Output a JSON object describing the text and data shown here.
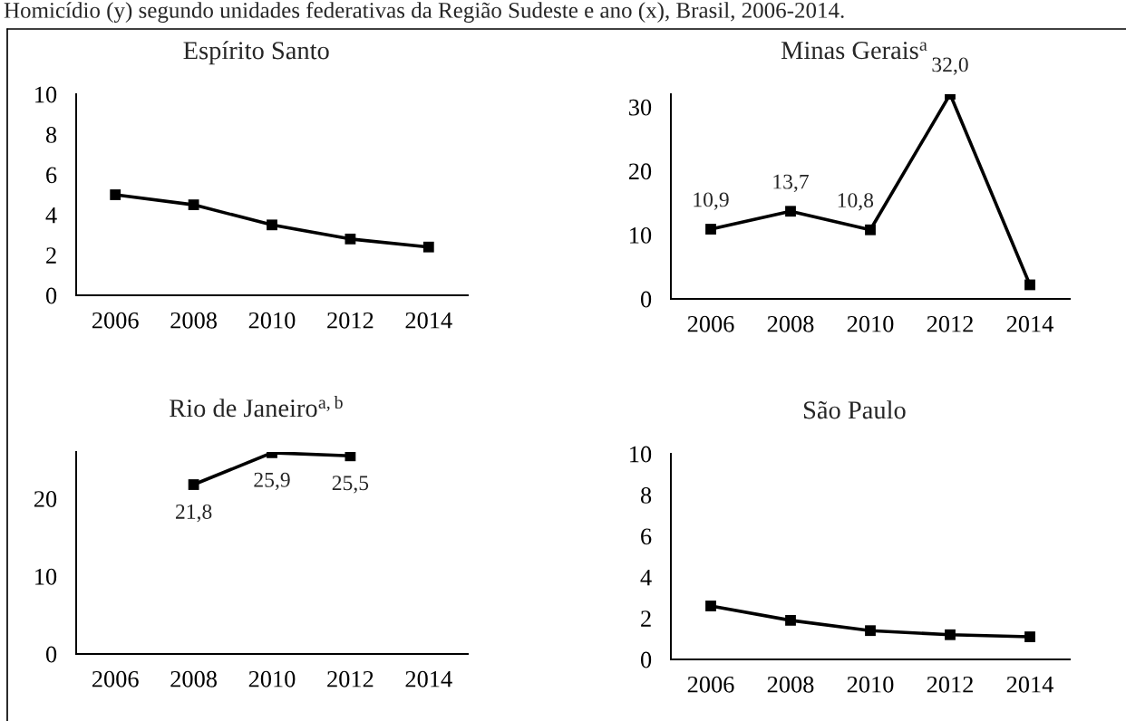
{
  "chart_data": [
    {
      "type": "line",
      "title": "Espírito Santo",
      "annotations": [
        "Homicídio (y) segundo unidades federativas da Região Sudeste e ano (x), Brasil, 2006-2014."
      ],
      "categories": [
        "2006",
        "2008",
        "2010",
        "2012",
        "2014"
      ],
      "series": [
        {
          "color": "#000000",
          "values": [
            5.0,
            4.5,
            3.5,
            2.8,
            2.4
          ]
        }
      ],
      "ylim": [
        0,
        10
      ],
      "yticks": [
        0,
        2,
        4,
        6,
        8,
        10
      ],
      "marker": "square",
      "line_style": "solid"
    },
    {
      "type": "line",
      "title": "Minas Gerais$^{a}$",
      "categories": [
        "2006",
        "2008",
        "2010",
        "2012",
        "2014"
      ],
      "series": [
        {
          "color": "#000000",
          "values": [
            10.9,
            13.7,
            10.8,
            32.0,
            2.2
          ],
          "value_labels": [
            "10,9",
            "13,7",
            "10,8",
            "32,0",
            null
          ]
        }
      ],
      "ylim": [
        0,
        32
      ],
      "yticks": [
        0,
        10,
        20,
        30
      ],
      "marker": "square",
      "line_style": "solid"
    },
    {
      "type": "line",
      "title": "Rio de Janeiro$^{a,b}$",
      "categories": [
        "2006",
        "2008",
        "2010",
        "2012",
        "2014"
      ],
      "series": [
        {
          "color": "#000000",
          "values": [
            null,
            21.8,
            25.9,
            25.5,
            null
          ],
          "value_labels": [
            null,
            "21,8",
            "25,9",
            "25,5",
            null
          ]
        }
      ],
      "ylim": [
        0,
        26
      ],
      "yticks": [
        0,
        10,
        20
      ],
      "marker": "square",
      "line_style": "solid"
    },
    {
      "type": "line",
      "title": "São Paulo",
      "categories": [
        "2006",
        "2008",
        "2010",
        "2012",
        "2014"
      ],
      "series": [
        {
          "color": "#000000",
          "values": [
            2.6,
            1.9,
            1.4,
            1.2,
            1.1
          ]
        }
      ],
      "ylim": [
        0,
        10
      ],
      "yticks": [
        0,
        2,
        4,
        6,
        8,
        10
      ],
      "marker": "square",
      "line_style": "solid"
    }
  ]
}
